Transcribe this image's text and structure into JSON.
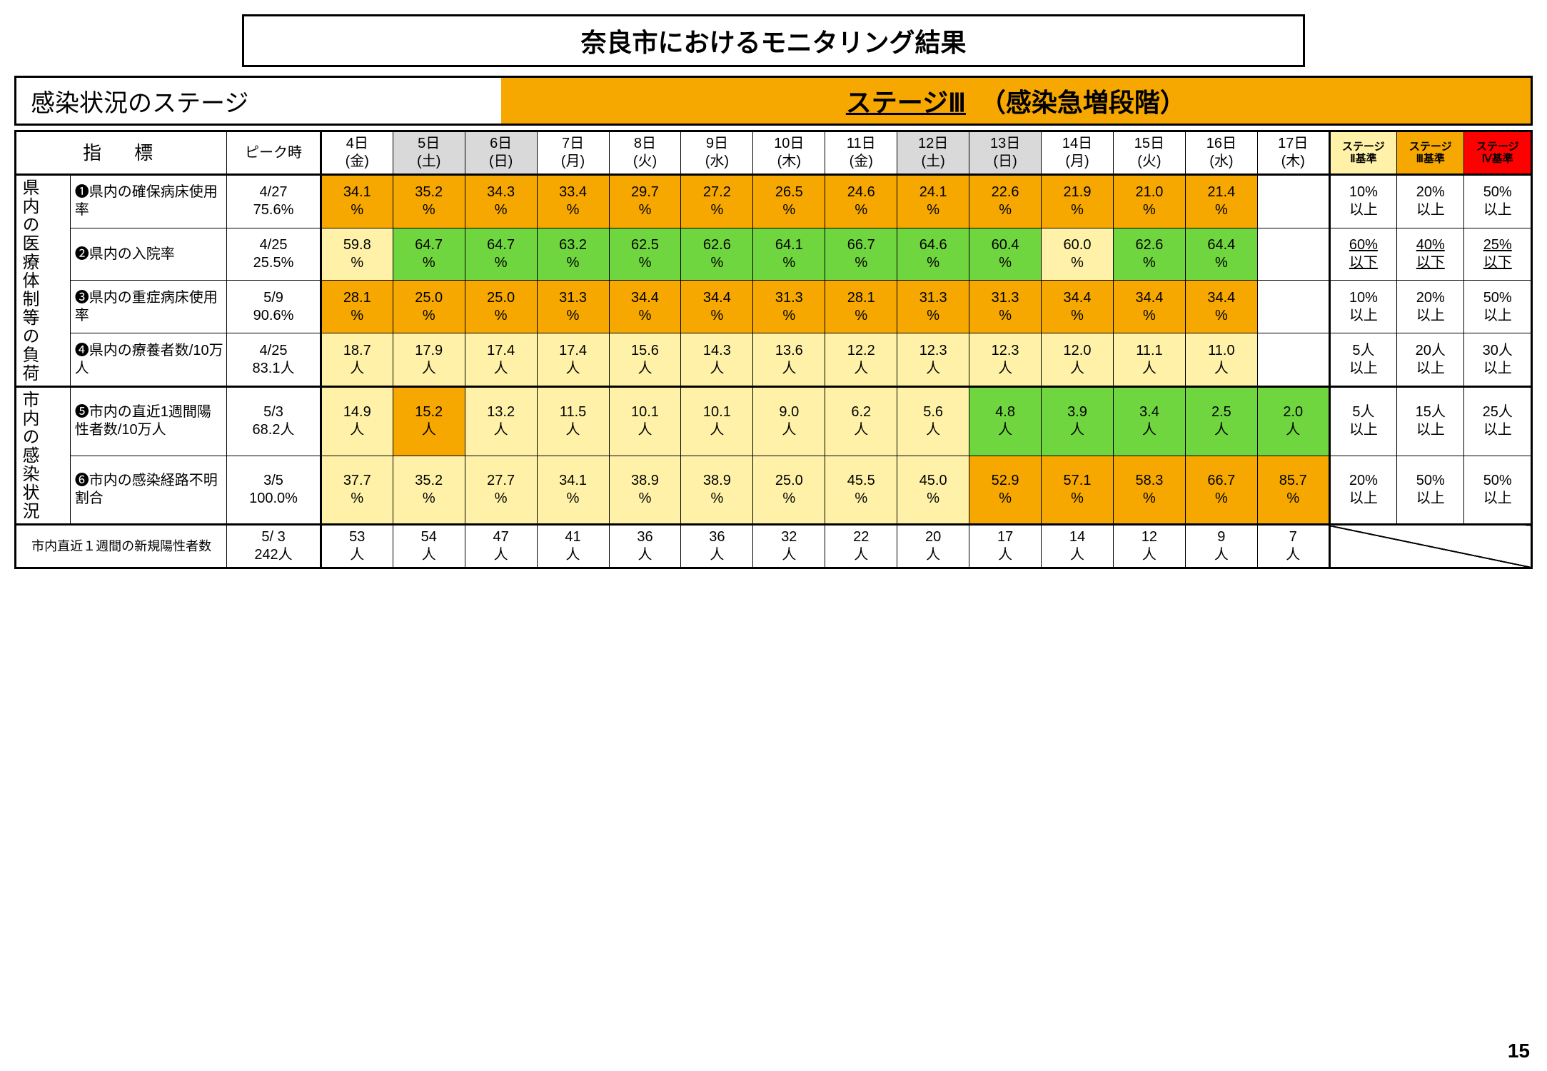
{
  "title": "奈良市におけるモニタリング結果",
  "stage": {
    "label": "感染状況のステージ",
    "value_main": "ステージⅢ",
    "value_sub": "（感染急増段階）",
    "bg_color": "#f6a800"
  },
  "colors": {
    "orange": "#f6a800",
    "light_yellow": "#fff2a8",
    "green": "#70d63f",
    "red": "#ff0000",
    "gray": "#d9d9d9",
    "white": "#ffffff"
  },
  "header": {
    "indicator": "指　標",
    "peak": "ピーク時",
    "days": [
      {
        "d": "4日",
        "w": "(金)",
        "shaded": false
      },
      {
        "d": "5日",
        "w": "(土)",
        "shaded": true
      },
      {
        "d": "6日",
        "w": "(日)",
        "shaded": true
      },
      {
        "d": "7日",
        "w": "(月)",
        "shaded": false
      },
      {
        "d": "8日",
        "w": "(火)",
        "shaded": false
      },
      {
        "d": "9日",
        "w": "(水)",
        "shaded": false
      },
      {
        "d": "10日",
        "w": "(木)",
        "shaded": false
      },
      {
        "d": "11日",
        "w": "(金)",
        "shaded": false
      },
      {
        "d": "12日",
        "w": "(土)",
        "shaded": true
      },
      {
        "d": "13日",
        "w": "(日)",
        "shaded": true
      },
      {
        "d": "14日",
        "w": "(月)",
        "shaded": false
      },
      {
        "d": "15日",
        "w": "(火)",
        "shaded": false
      },
      {
        "d": "16日",
        "w": "(水)",
        "shaded": false
      },
      {
        "d": "17日",
        "w": "(木)",
        "shaded": false
      }
    ],
    "thresholds": [
      {
        "l1": "ステージ",
        "l2": "Ⅱ基準",
        "bg": "#fff2a8"
      },
      {
        "l1": "ステージ",
        "l2": "Ⅲ基準",
        "bg": "#f6a800"
      },
      {
        "l1": "ステージ",
        "l2": "Ⅳ基準",
        "bg": "#ff0000"
      }
    ]
  },
  "groups": [
    {
      "label": "県内の医療体制等の負荷",
      "span": 4
    },
    {
      "label": "市内の感染状況",
      "span": 2
    }
  ],
  "rows": [
    {
      "ind": "❶県内の確保病床使用率",
      "peak": "4/27\n75.6%",
      "cells": [
        {
          "v": "34.1%",
          "c": "orange"
        },
        {
          "v": "35.2%",
          "c": "orange"
        },
        {
          "v": "34.3%",
          "c": "orange"
        },
        {
          "v": "33.4%",
          "c": "orange"
        },
        {
          "v": "29.7%",
          "c": "orange"
        },
        {
          "v": "27.2%",
          "c": "orange"
        },
        {
          "v": "26.5%",
          "c": "orange"
        },
        {
          "v": "24.6%",
          "c": "orange"
        },
        {
          "v": "24.1%",
          "c": "orange"
        },
        {
          "v": "22.6%",
          "c": "orange"
        },
        {
          "v": "21.9%",
          "c": "orange"
        },
        {
          "v": "21.0%",
          "c": "orange"
        },
        {
          "v": "21.4%",
          "c": "orange"
        },
        {
          "v": "",
          "c": "white"
        }
      ],
      "th": [
        "10%以上",
        "20%以上",
        "50%以上"
      ]
    },
    {
      "ind": "❷県内の入院率",
      "peak": "4/25\n25.5%",
      "cells": [
        {
          "v": "59.8%",
          "c": "light_yellow"
        },
        {
          "v": "64.7%",
          "c": "green"
        },
        {
          "v": "64.7%",
          "c": "green"
        },
        {
          "v": "63.2%",
          "c": "green"
        },
        {
          "v": "62.5%",
          "c": "green"
        },
        {
          "v": "62.6%",
          "c": "green"
        },
        {
          "v": "64.1%",
          "c": "green"
        },
        {
          "v": "66.7%",
          "c": "green"
        },
        {
          "v": "64.6%",
          "c": "green"
        },
        {
          "v": "60.4%",
          "c": "green"
        },
        {
          "v": "60.0%",
          "c": "light_yellow"
        },
        {
          "v": "62.6%",
          "c": "green"
        },
        {
          "v": "64.4%",
          "c": "green"
        },
        {
          "v": "",
          "c": "white"
        }
      ],
      "th": [
        "60%以下",
        "40%以下",
        "25%以下"
      ],
      "th_u": true
    },
    {
      "ind": "❸県内の重症病床使用率",
      "peak": "5/9\n90.6%",
      "cells": [
        {
          "v": "28.1%",
          "c": "orange"
        },
        {
          "v": "25.0%",
          "c": "orange"
        },
        {
          "v": "25.0%",
          "c": "orange"
        },
        {
          "v": "31.3%",
          "c": "orange"
        },
        {
          "v": "34.4%",
          "c": "orange"
        },
        {
          "v": "34.4%",
          "c": "orange"
        },
        {
          "v": "31.3%",
          "c": "orange"
        },
        {
          "v": "28.1%",
          "c": "orange"
        },
        {
          "v": "31.3%",
          "c": "orange"
        },
        {
          "v": "31.3%",
          "c": "orange"
        },
        {
          "v": "34.4%",
          "c": "orange"
        },
        {
          "v": "34.4%",
          "c": "orange"
        },
        {
          "v": "34.4%",
          "c": "orange"
        },
        {
          "v": "",
          "c": "white"
        }
      ],
      "th": [
        "10%以上",
        "20%以上",
        "50%以上"
      ]
    },
    {
      "ind": "❹県内の療養者数/10万人",
      "peak": "4/25\n83.1人",
      "cells": [
        {
          "v": "18.7人",
          "c": "light_yellow"
        },
        {
          "v": "17.9人",
          "c": "light_yellow"
        },
        {
          "v": "17.4人",
          "c": "light_yellow"
        },
        {
          "v": "17.4人",
          "c": "light_yellow"
        },
        {
          "v": "15.6人",
          "c": "light_yellow"
        },
        {
          "v": "14.3人",
          "c": "light_yellow"
        },
        {
          "v": "13.6人",
          "c": "light_yellow"
        },
        {
          "v": "12.2人",
          "c": "light_yellow"
        },
        {
          "v": "12.3人",
          "c": "light_yellow"
        },
        {
          "v": "12.3人",
          "c": "light_yellow"
        },
        {
          "v": "12.0人",
          "c": "light_yellow"
        },
        {
          "v": "11.1人",
          "c": "light_yellow"
        },
        {
          "v": "11.0人",
          "c": "light_yellow"
        },
        {
          "v": "",
          "c": "white"
        }
      ],
      "th": [
        "5人以上",
        "20人以上",
        "30人以上"
      ]
    },
    {
      "ind": "❺市内の直近1週間陽性者数/10万人",
      "peak": "5/3\n68.2人",
      "cells": [
        {
          "v": "14.9人",
          "c": "light_yellow"
        },
        {
          "v": "15.2人",
          "c": "orange"
        },
        {
          "v": "13.2人",
          "c": "light_yellow"
        },
        {
          "v": "11.5人",
          "c": "light_yellow"
        },
        {
          "v": "10.1人",
          "c": "light_yellow"
        },
        {
          "v": "10.1人",
          "c": "light_yellow"
        },
        {
          "v": "9.0人",
          "c": "light_yellow"
        },
        {
          "v": "6.2人",
          "c": "light_yellow"
        },
        {
          "v": "5.6人",
          "c": "light_yellow"
        },
        {
          "v": "4.8人",
          "c": "green"
        },
        {
          "v": "3.9人",
          "c": "green"
        },
        {
          "v": "3.4人",
          "c": "green"
        },
        {
          "v": "2.5人",
          "c": "green"
        },
        {
          "v": "2.0人",
          "c": "green"
        }
      ],
      "th": [
        "5人以上",
        "15人以上",
        "25人以上"
      ]
    },
    {
      "ind": "❻市内の感染経路不明割合",
      "peak": "3/5\n100.0%",
      "cells": [
        {
          "v": "37.7%",
          "c": "light_yellow"
        },
        {
          "v": "35.2%",
          "c": "light_yellow"
        },
        {
          "v": "27.7%",
          "c": "light_yellow"
        },
        {
          "v": "34.1%",
          "c": "light_yellow"
        },
        {
          "v": "38.9%",
          "c": "light_yellow"
        },
        {
          "v": "38.9%",
          "c": "light_yellow"
        },
        {
          "v": "25.0%",
          "c": "light_yellow"
        },
        {
          "v": "45.5%",
          "c": "light_yellow"
        },
        {
          "v": "45.0%",
          "c": "light_yellow"
        },
        {
          "v": "52.9%",
          "c": "orange"
        },
        {
          "v": "57.1%",
          "c": "orange"
        },
        {
          "v": "58.3%",
          "c": "orange"
        },
        {
          "v": "66.7%",
          "c": "orange"
        },
        {
          "v": "85.7%",
          "c": "orange"
        }
      ],
      "th": [
        "20%以上",
        "50%以上",
        "50%以上"
      ]
    }
  ],
  "footer": {
    "label": "市内直近１週間の新規陽性者数",
    "peak": "5/ 3\n242人",
    "cells": [
      "53人",
      "54人",
      "47人",
      "41人",
      "36人",
      "36人",
      "32人",
      "22人",
      "20人",
      "17人",
      "14人",
      "12人",
      "9人",
      "7人"
    ]
  },
  "page_number": "15"
}
